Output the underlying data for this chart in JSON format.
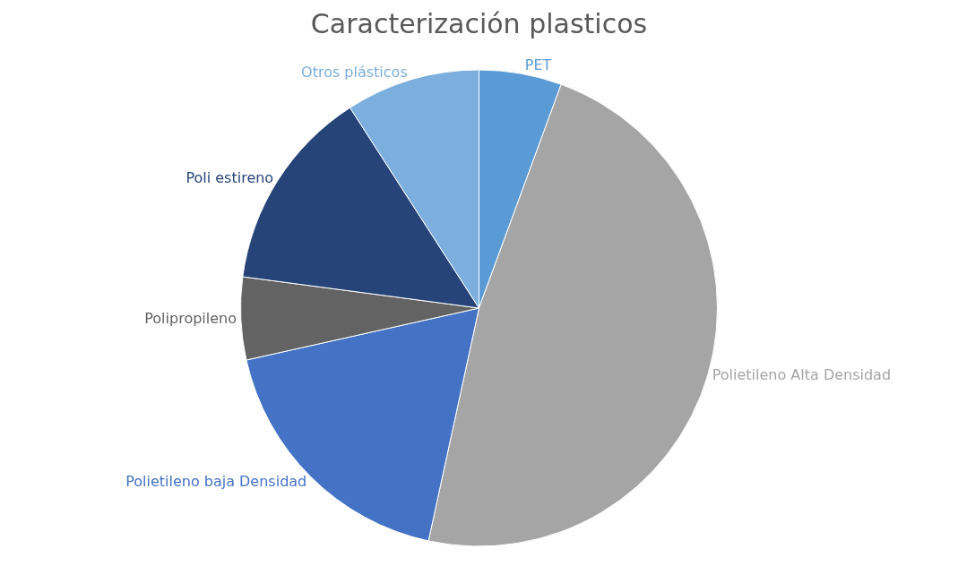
{
  "chart_data": {
    "type": "pie",
    "title": "Caracterización plasticos",
    "categories": [
      "PET",
      "Polietileno Alta Densidad",
      "Polietileno baja Densidad",
      "Polipropileno",
      "Poli estireno",
      "Otros plásticos"
    ],
    "values": [
      5.6,
      47.8,
      18.1,
      5.6,
      13.8,
      9.1
    ],
    "colors": [
      "#5b9bd5",
      "#a5a5a5",
      "#4472c4",
      "#636363",
      "#264478",
      "#7cafdd"
    ],
    "legend": false
  }
}
